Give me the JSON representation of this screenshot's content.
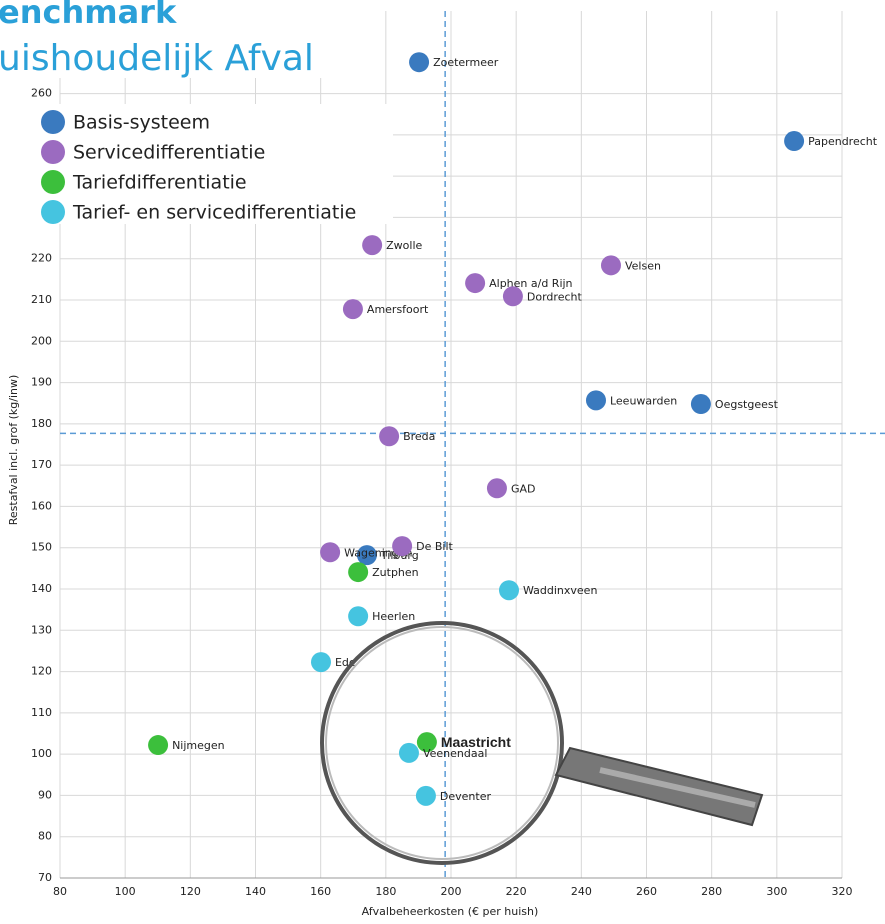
{
  "chart_data": {
    "type": "scatter",
    "title": "enchmark",
    "subtitle": "uishoudelijk Afval",
    "x_label": "Afvalbeheerkosten (€ per huish)",
    "y_label": "Restafval incl. grof (kg/inw)",
    "xlim": [
      80,
      320
    ],
    "xticks": [
      80,
      100,
      120,
      140,
      160,
      180,
      200,
      220,
      240,
      260,
      280,
      300,
      320
    ],
    "ylim": [
      70,
      280
    ],
    "yticks": [
      70,
      80,
      90,
      100,
      110,
      120,
      130,
      140,
      150,
      160,
      170,
      180,
      190,
      200,
      210,
      220,
      230,
      240,
      250,
      260
    ],
    "grid": true,
    "ref_x": 198.2,
    "ref_y": 177.7,
    "series": [
      {
        "name": "Basis-systeem",
        "color": "#3a7abf",
        "labels": [
          "Zoetermeer",
          "Papendrecht",
          "Leeuwarden",
          "Oegstgeest",
          "Tilburg"
        ],
        "x": [
          190.2,
          305.3,
          244.5,
          276.7,
          174.2
        ],
        "values": [
          267.6,
          248.5,
          185.7,
          184.8,
          148.2
        ]
      },
      {
        "name": "Servicedifferentiatie",
        "color": "#9b6bc0",
        "labels": [
          "Zwolle",
          "Velsen",
          "Alphen a/d Rijn",
          "Dordrecht",
          "Amersfoort",
          "Breda",
          "GAD",
          "Wageningen",
          "De Bilt"
        ],
        "x": [
          175.8,
          249.1,
          207.4,
          219.0,
          169.9,
          181.0,
          214.1,
          162.9,
          185.0
        ],
        "values": [
          223.3,
          218.4,
          214.1,
          210.9,
          207.8,
          177.0,
          164.4,
          148.9,
          150.4
        ]
      },
      {
        "name": "Tariefdifferentiatie",
        "color": "#3cbf3c",
        "labels": [
          "Zutphen",
          "Maastricht",
          "Nijmegen"
        ],
        "x": [
          171.5,
          192.6,
          110.1
        ],
        "values": [
          144.1,
          102.9,
          102.2
        ]
      },
      {
        "name": "Tarief- en servicedifferentiatie",
        "color": "#45c4e0",
        "labels": [
          "Waddinxveen",
          "Heerlen",
          "Ede",
          "Veenendaal",
          "Deventer"
        ],
        "x": [
          217.8,
          171.5,
          160.1,
          187.1,
          192.3
        ],
        "values": [
          139.7,
          133.4,
          122.3,
          100.3,
          89.9
        ]
      }
    ]
  }
}
